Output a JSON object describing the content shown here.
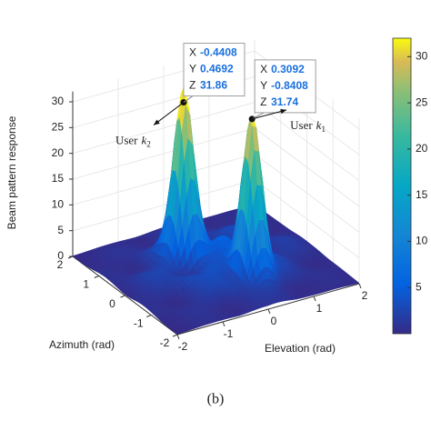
{
  "chart_data": {
    "type": "surface",
    "zlabel": "Beam pattern response",
    "xlabel": "Elevation (rad)",
    "ylabel": "Azimuth (rad)",
    "caption": "(b)",
    "xlim": [
      -2,
      2
    ],
    "xticks": [
      -2,
      -1,
      0,
      1,
      2
    ],
    "ylim": [
      -2,
      2
    ],
    "yticks": [
      2,
      1,
      0,
      -1,
      -2
    ],
    "zlim": [
      0,
      32
    ],
    "zticks": [
      0,
      5,
      10,
      15,
      20,
      25,
      30
    ],
    "colormap": "parula",
    "clim": [
      0,
      32
    ],
    "cticks": [
      5,
      10,
      15,
      20,
      25,
      30
    ],
    "datatip_labels": [
      "X",
      "Y",
      "Z"
    ],
    "datatips": [
      {
        "x": -0.4408,
        "y": 0.4692,
        "z": 31.86,
        "user": "User",
        "var": "k",
        "sub": "2"
      },
      {
        "x": 0.3092,
        "y": -0.8408,
        "z": 31.74,
        "user": "User",
        "var": "k",
        "sub": "1"
      }
    ]
  }
}
